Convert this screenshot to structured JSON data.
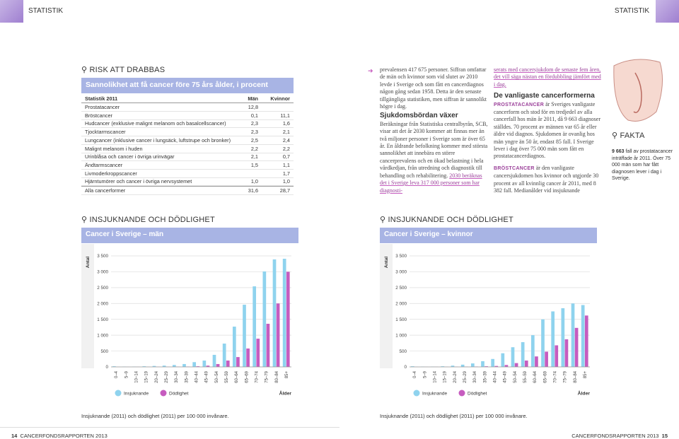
{
  "header": {
    "left": "STATISTIK",
    "right": "STATISTIK"
  },
  "risk": {
    "heading": "RISK ATT DRABBAS",
    "table": {
      "title": "Sannolikhet att få cancer före 75 års ålder, i procent",
      "columns": [
        "Statistik 2011",
        "Män",
        "Kvinnor"
      ],
      "rows": [
        [
          "Prostatacancer",
          "12,8",
          null
        ],
        [
          "Bröstcancer",
          "0,1",
          "11,1"
        ],
        [
          "Hudcancer (exklusive malignt melanom och basalcellscancer)",
          "2,3",
          "1,6"
        ],
        [
          "Tjocktarmscancer",
          "2,3",
          "2,1"
        ],
        [
          "Lungcancer (inklusive cancer i lungsäck, luftstrupe och bronker)",
          "2,5",
          "2,4"
        ],
        [
          "Malignt melanom i huden",
          "2,2",
          "2,2"
        ],
        [
          "Urinblåsa och cancer i övriga urinvägar",
          "2,1",
          "0,7"
        ],
        [
          "Ändtarmscancer",
          "1,5",
          "1,1"
        ],
        [
          "Livmoderkroppscancer",
          null,
          "1,7"
        ],
        [
          "Hjärntumörer och cancer i övriga nervsystemet",
          "1,0",
          "1,0"
        ],
        [
          "Alla cancerformer",
          "31,6",
          "28,7"
        ]
      ]
    }
  },
  "column1": {
    "p1": "prevalensen 417 675 personer. Siffran omfattar de män och kvinnor som vid slutet av 2010 levde i Sverige och som fått en cancerdiagnos någon gång sedan 1958. Detta är den senaste tillgängliga statistiken, men siffran är sannolikt högre i dag.",
    "heading": "Sjukdomsbördan växer",
    "p2": "Beräkningar från Statistiska centralbyrån, SCB, visar att det år 2030 kommer att finnas mer än två miljoner personer i Sverige som är över 65 år. En åldrande befolkning kommer med största sannolikhet att innebära en större cancerprevalens och en ökad belastning i hela vårdkedjan, från utredning och diagnostik till behandling och rehabilitering.",
    "highlight": "2030 beräknas det i Sverige leva 317 000 personer som har diagnosti-"
  },
  "column2": {
    "highlight": "serats med cancersjukdom de senaste fem åren, det vill säga nästan en fördubbling jämfört med i dag.",
    "heading": "De vanligaste cancerformerna",
    "p1_lead": "PROSTATACANCER",
    "p1": "är Sveriges vanligaste cancerform och stod för en tredjedel av alla cancerfall hos män år 2011, då 9 663 diagnoser ställdes. 70 procent av männen var 65 år eller äldre vid diagnos. Sjukdomen är ovanlig hos män yngre än 50 år, endast 85 fall. I Sverige lever i dag över 75 000 män som fått en prostatacancerdiagnos.",
    "p2_lead": "BRÖSTCANCER",
    "p2": "är den vanligaste cancersjukdomen hos kvinnor och utgjorde 30 procent av all kvinnlig cancer år 2011, med 8 382 fall. Medianålder vid insjuknande"
  },
  "fakta": {
    "heading": "FAKTA",
    "lead": "9 663",
    "text": "fall av prostatacancer inträffade år 2011. Över 75 000 män som har fått diagnosen lever i dag i Sverige."
  },
  "chart_data": [
    {
      "type": "bar",
      "section": "INSJUKNANDE OCH DÖDLIGHET",
      "title": "Cancer i Sverige – män",
      "y_label": "Antal",
      "x_label": "Ålder",
      "footnote": "Insjuknande (2011) och dödlighet (2011) per 100 000 invånare.",
      "categories": [
        "0–4",
        "5–9",
        "10–14",
        "15–19",
        "20–24",
        "25–29",
        "30–34",
        "35–39",
        "40–44",
        "45–49",
        "50–54",
        "55–59",
        "60–64",
        "65–69",
        "70–74",
        "75–79",
        "80–84",
        "85+"
      ],
      "series": [
        {
          "name": "Insjuknande",
          "color": "#8fd3ee",
          "values": [
            20,
            10,
            10,
            20,
            30,
            40,
            60,
            90,
            150,
            200,
            380,
            735,
            1270,
            1960,
            2540,
            3010,
            3390,
            3410
          ]
        },
        {
          "name": "Dödlighet",
          "color": "#c65cbf",
          "values": [
            1,
            1,
            2,
            2,
            3,
            4,
            6,
            10,
            20,
            40,
            90,
            200,
            310,
            580,
            890,
            1360,
            2000,
            3000
          ]
        }
      ],
      "ylim": [
        0,
        3500
      ],
      "yticks": [
        0,
        500,
        {
          "value": 1000,
          "label": "1 000"
        },
        {
          "value": 1500,
          "label": "1 500"
        },
        {
          "value": 2000,
          "label": "2 000"
        },
        {
          "value": 2500,
          "label": "2 500"
        },
        {
          "value": 3000,
          "label": "3 000"
        },
        {
          "value": 3500,
          "label": "3 500"
        }
      ],
      "grid": true
    },
    {
      "type": "bar",
      "section": "INSJUKNANDE OCH DÖDLIGHET",
      "title": "Cancer i Sverige – kvinnor",
      "y_label": "Antal",
      "x_label": "Ålder",
      "footnote": "Insjuknande (2011) och dödlighet (2011) per 100 000 invånare.",
      "categories": [
        "0–4",
        "5–9",
        "10–14",
        "15–19",
        "20–24",
        "25–29",
        "30–34",
        "35–39",
        "40–44",
        "45–49",
        "50–54",
        "55–59",
        "60–64",
        "65–69",
        "70–74",
        "75–79",
        "80–84",
        "85+"
      ],
      "series": [
        {
          "name": "Insjuknande",
          "color": "#8fd3ee",
          "values": [
            20,
            10,
            10,
            20,
            40,
            70,
            110,
            180,
            250,
            430,
            620,
            780,
            1000,
            1500,
            1750,
            1850,
            2000,
            1950
          ]
        },
        {
          "name": "Dödlighet",
          "color": "#c65cbf",
          "values": [
            1,
            1,
            2,
            2,
            3,
            5,
            10,
            20,
            30,
            60,
            120,
            200,
            330,
            480,
            680,
            870,
            1230,
            1620
          ]
        }
      ],
      "ylim": [
        0,
        3500
      ],
      "yticks": [
        0,
        500,
        {
          "value": 1000,
          "label": "1 000"
        },
        {
          "value": 1500,
          "label": "1 500"
        },
        {
          "value": 2000,
          "label": "2 000"
        },
        {
          "value": 2500,
          "label": "2 500"
        },
        {
          "value": 3000,
          "label": "3 000"
        },
        {
          "value": 3500,
          "label": "3 500"
        }
      ],
      "grid": true
    }
  ],
  "footer": {
    "left_page": "14",
    "left_title": "CANCERFONDSRAPPORTEN 2013",
    "right_title": "CANCERFONDSRAPPORTEN 2013",
    "right_page": "15"
  }
}
